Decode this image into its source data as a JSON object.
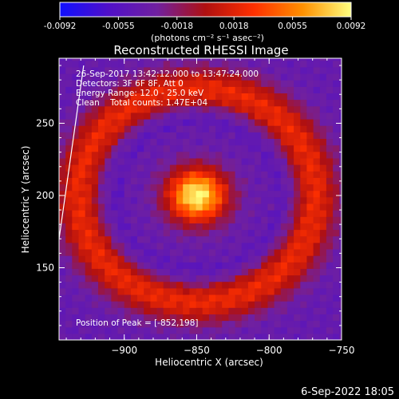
{
  "colorbar": {
    "tick_labels": [
      "-0.0092",
      "-0.0055",
      "-0.0018",
      "0.0018",
      "0.0055",
      "0.0092"
    ],
    "unit_label": "(photons cm⁻² s⁻¹ asec⁻²)",
    "range": [
      -0.0092,
      0.0092
    ],
    "colormap": [
      "#1010ff",
      "#5010c8",
      "#7020a0",
      "#b01010",
      "#ff3000",
      "#ff9000",
      "#ffff80"
    ]
  },
  "chart_data": {
    "type": "heatmap",
    "title": "Reconstructed RHESSI Image",
    "xlabel": "Heliocentric X (arcsec)",
    "ylabel": "Heliocentric Y (arcsec)",
    "xlim": [
      -945,
      -750
    ],
    "ylim": [
      100,
      295
    ],
    "xticks": [
      -900,
      -850,
      -800,
      -750
    ],
    "xtick_labels": [
      "−900",
      "−850",
      "−800",
      "−750"
    ],
    "yticks": [
      150,
      200,
      250
    ],
    "ytick_labels": [
      "150",
      "200",
      "250"
    ],
    "annotations": [
      "26-Sep-2017 13:42:12.000 to 13:47:24.000",
      "Detectors: 3F 6F 8F, Att 0",
      "Energy Range: 12.0 - 25.0 keV",
      "Clean    Total counts: 1.47E+04"
    ],
    "peak_label": "Position of Peak = [-852,198]",
    "peak": [
      -852,
      198
    ],
    "limb": [
      [
        -945,
        170
      ],
      [
        -928,
        290
      ]
    ]
  },
  "footer": {
    "timestamp": "6-Sep-2022 18:05"
  }
}
